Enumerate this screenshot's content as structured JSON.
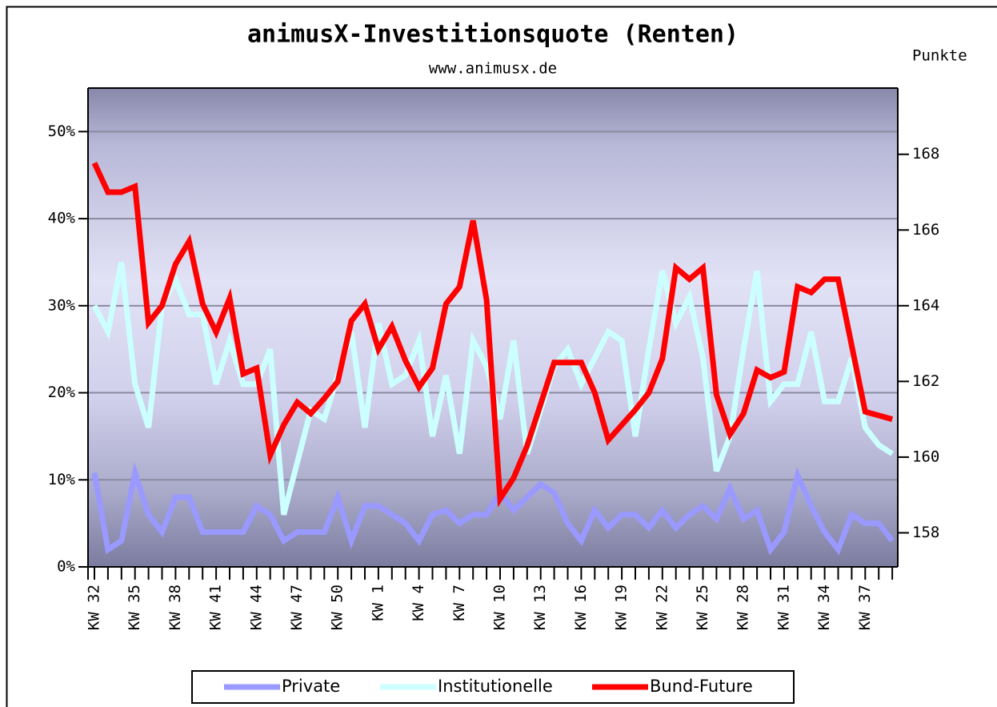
{
  "chart_data": {
    "type": "line",
    "title": "animusX-Investitionsquote (Renten)",
    "subtitle": "www.animusx.de",
    "y2_label": "Punkte",
    "categories": [
      "KW 32",
      null,
      null,
      "KW 35",
      null,
      null,
      "KW 38",
      null,
      null,
      "KW 41",
      null,
      null,
      "KW 44",
      null,
      null,
      "KW 47",
      null,
      null,
      "KW 50",
      null,
      null,
      "KW 1",
      null,
      null,
      "KW 4",
      null,
      null,
      "KW 7",
      null,
      null,
      "KW 10",
      null,
      null,
      "KW 13",
      null,
      null,
      "KW 16",
      null,
      null,
      "KW 19",
      null,
      null,
      "KW 22",
      null,
      null,
      "KW 25",
      null,
      null,
      "KW 28",
      null,
      null,
      "KW 31",
      null,
      null,
      "KW 34",
      null,
      null,
      "KW 37",
      null,
      null
    ],
    "series": [
      {
        "name": "Private",
        "color": "#9999ff",
        "axis": "y",
        "values": [
          10.8,
          2,
          3,
          10.8,
          6,
          4,
          8,
          8,
          4,
          4,
          4,
          4,
          7,
          6,
          3,
          4,
          4,
          4,
          8,
          3,
          7,
          7,
          6,
          5,
          3,
          6,
          6.5,
          5,
          6,
          6,
          8.5,
          6.5,
          8,
          9.5,
          8.5,
          5,
          3,
          6.5,
          4.5,
          6,
          6,
          4.5,
          6.5,
          4.5,
          6,
          7,
          5.5,
          9,
          5.5,
          6.5,
          2,
          4,
          10.5,
          7,
          4,
          2,
          6,
          5,
          5,
          3
        ]
      },
      {
        "name": "Institutionelle",
        "color": "#ccffff",
        "axis": "y",
        "values": [
          30,
          27,
          35,
          21,
          16,
          30,
          33,
          29,
          29,
          21,
          26,
          21,
          21,
          25,
          6,
          12,
          18,
          17,
          22,
          27,
          16,
          28,
          21,
          22,
          26,
          15,
          22,
          13,
          26,
          23,
          17,
          26,
          13,
          18,
          23,
          25,
          21,
          24,
          27,
          26,
          15,
          25,
          34,
          28,
          31,
          24,
          11,
          15,
          25,
          34,
          19,
          21,
          21,
          27,
          19,
          19,
          24,
          16,
          14,
          13
        ]
      },
      {
        "name": "Bund-Future",
        "color": "#ff0000",
        "axis": "y2",
        "values": [
          167.77,
          167.0,
          167.0,
          167.15,
          163.55,
          164.0,
          165.1,
          165.7,
          164.05,
          163.3,
          164.2,
          162.2,
          162.35,
          160.05,
          160.85,
          161.45,
          161.15,
          161.55,
          162.0,
          163.6,
          164.05,
          162.85,
          163.45,
          162.55,
          161.85,
          162.35,
          164.05,
          164.5,
          166.25,
          164.15,
          158.9,
          159.45,
          160.3,
          161.4,
          162.5,
          162.5,
          162.5,
          161.7,
          160.45,
          160.85,
          161.25,
          161.7,
          162.6,
          165.0,
          164.7,
          165.0,
          161.65,
          160.6,
          161.15,
          162.3,
          162.1,
          162.25,
          164.5,
          164.35,
          164.7,
          164.7,
          162.95,
          161.2,
          161.1,
          161.0
        ]
      }
    ],
    "ylim": [
      0,
      55
    ],
    "yticks": [
      {
        "value": 0,
        "label": "0%"
      },
      {
        "value": 10,
        "label": "10%"
      },
      {
        "value": 20,
        "label": "20%"
      },
      {
        "value": 30,
        "label": "30%"
      },
      {
        "value": 40,
        "label": "40%"
      },
      {
        "value": 50,
        "label": "50%"
      }
    ],
    "y2lim": [
      157.1,
      169.75
    ],
    "y2ticks": [
      158,
      160,
      162,
      164,
      166,
      168
    ],
    "grid": true,
    "legend": "bottom"
  }
}
